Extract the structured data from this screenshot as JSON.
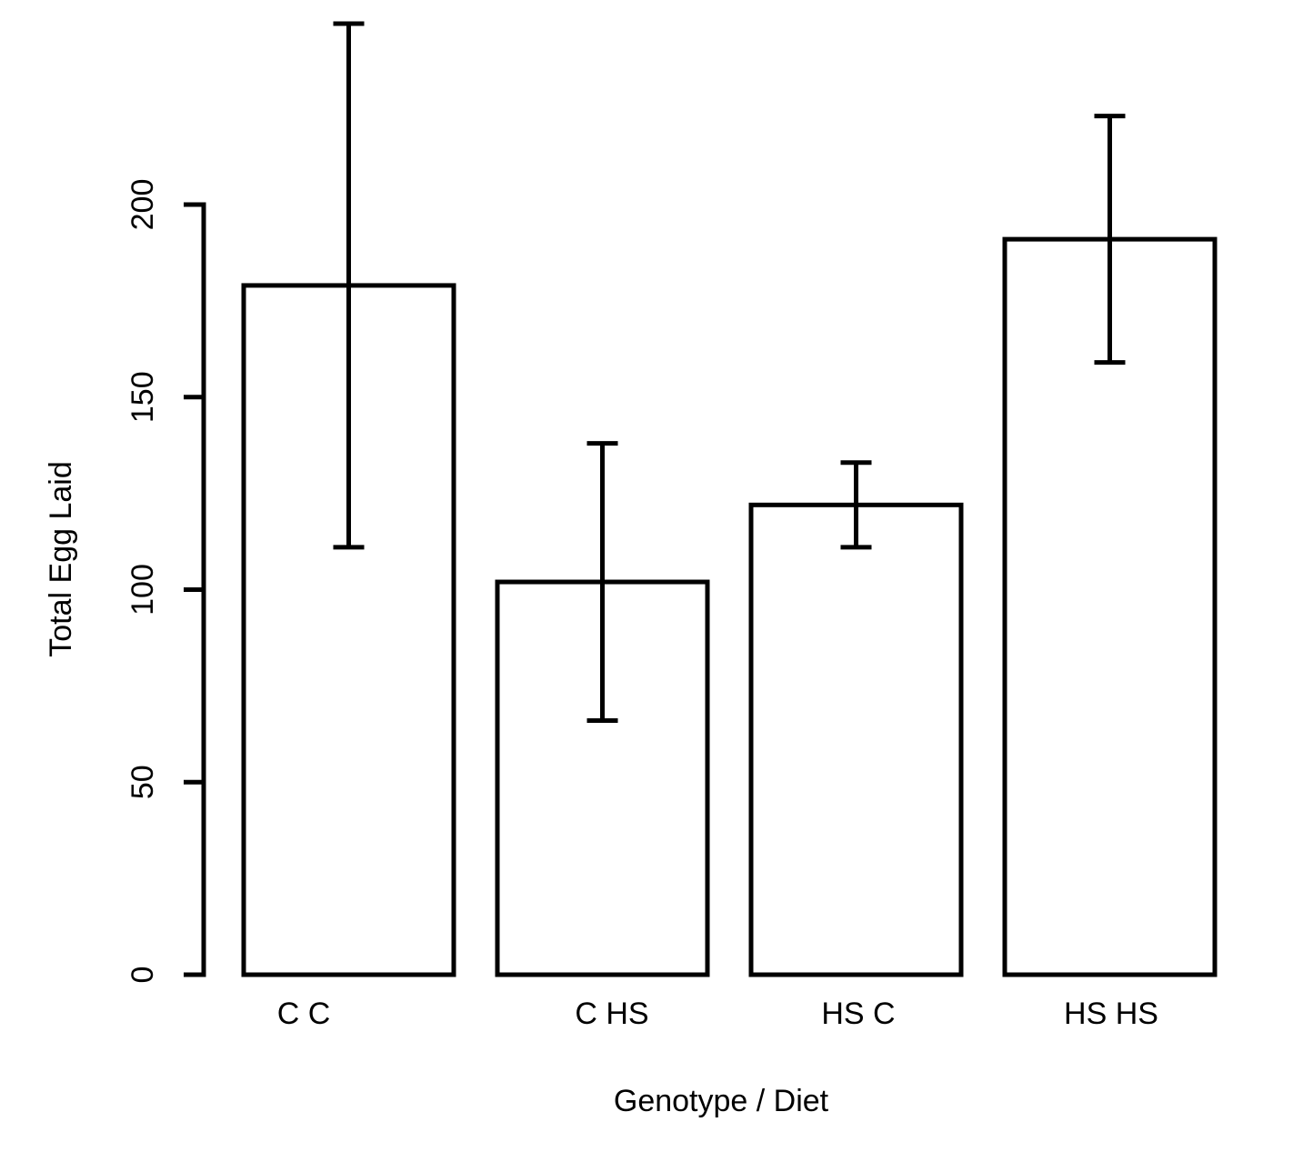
{
  "chart_data": {
    "type": "bar",
    "title": "",
    "xlabel": "Genotype / Diet",
    "ylabel": "Total Egg Laid",
    "categories": [
      "C C",
      "C HS",
      "HS C",
      "HS HS"
    ],
    "values": [
      179,
      102,
      122,
      191
    ],
    "error_bars": [
      {
        "lower": 111,
        "upper": 247
      },
      {
        "lower": 66,
        "upper": 138
      },
      {
        "lower": 111,
        "upper": 133
      },
      {
        "lower": 159,
        "upper": 223
      }
    ],
    "ylim": [
      0,
      200
    ],
    "yticks": [
      0,
      50,
      100,
      150,
      200
    ],
    "grid": false,
    "legend": "none",
    "bar_fill": "#ffffff",
    "bar_stroke": "#000000"
  }
}
